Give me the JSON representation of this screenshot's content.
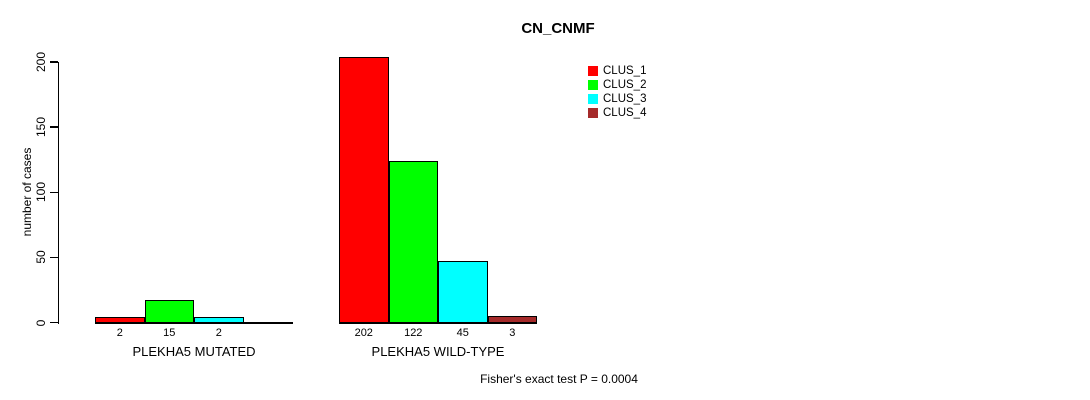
{
  "chart_data": {
    "type": "bar",
    "title": "CN_CNMF",
    "ylabel": "number of cases",
    "ylim": [
      0,
      200
    ],
    "yticks": [
      0,
      50,
      100,
      150,
      200
    ],
    "grid": false,
    "legend_position": "top-right",
    "series": [
      "CLUS_1",
      "CLUS_2",
      "CLUS_3",
      "CLUS_4"
    ],
    "colors": [
      "#FF0000",
      "#00FF00",
      "#00FFFF",
      "#A52A2A"
    ],
    "groups": [
      {
        "label": "PLEKHA5 MUTATED",
        "values": [
          2,
          15,
          2,
          0
        ],
        "value_labels": [
          "2",
          "15",
          "2",
          ""
        ]
      },
      {
        "label": "PLEKHA5 WILD-TYPE",
        "values": [
          202,
          122,
          45,
          3
        ],
        "value_labels": [
          "202",
          "122",
          "45",
          "3"
        ]
      }
    ],
    "annotation": "Fisher's exact test P = 0.0004"
  },
  "legend": {
    "items": [
      {
        "label": "CLUS_1",
        "color": "#FF0000"
      },
      {
        "label": "CLUS_2",
        "color": "#00FF00"
      },
      {
        "label": "CLUS_3",
        "color": "#00FFFF"
      },
      {
        "label": "CLUS_4",
        "color": "#A52A2A"
      }
    ]
  }
}
